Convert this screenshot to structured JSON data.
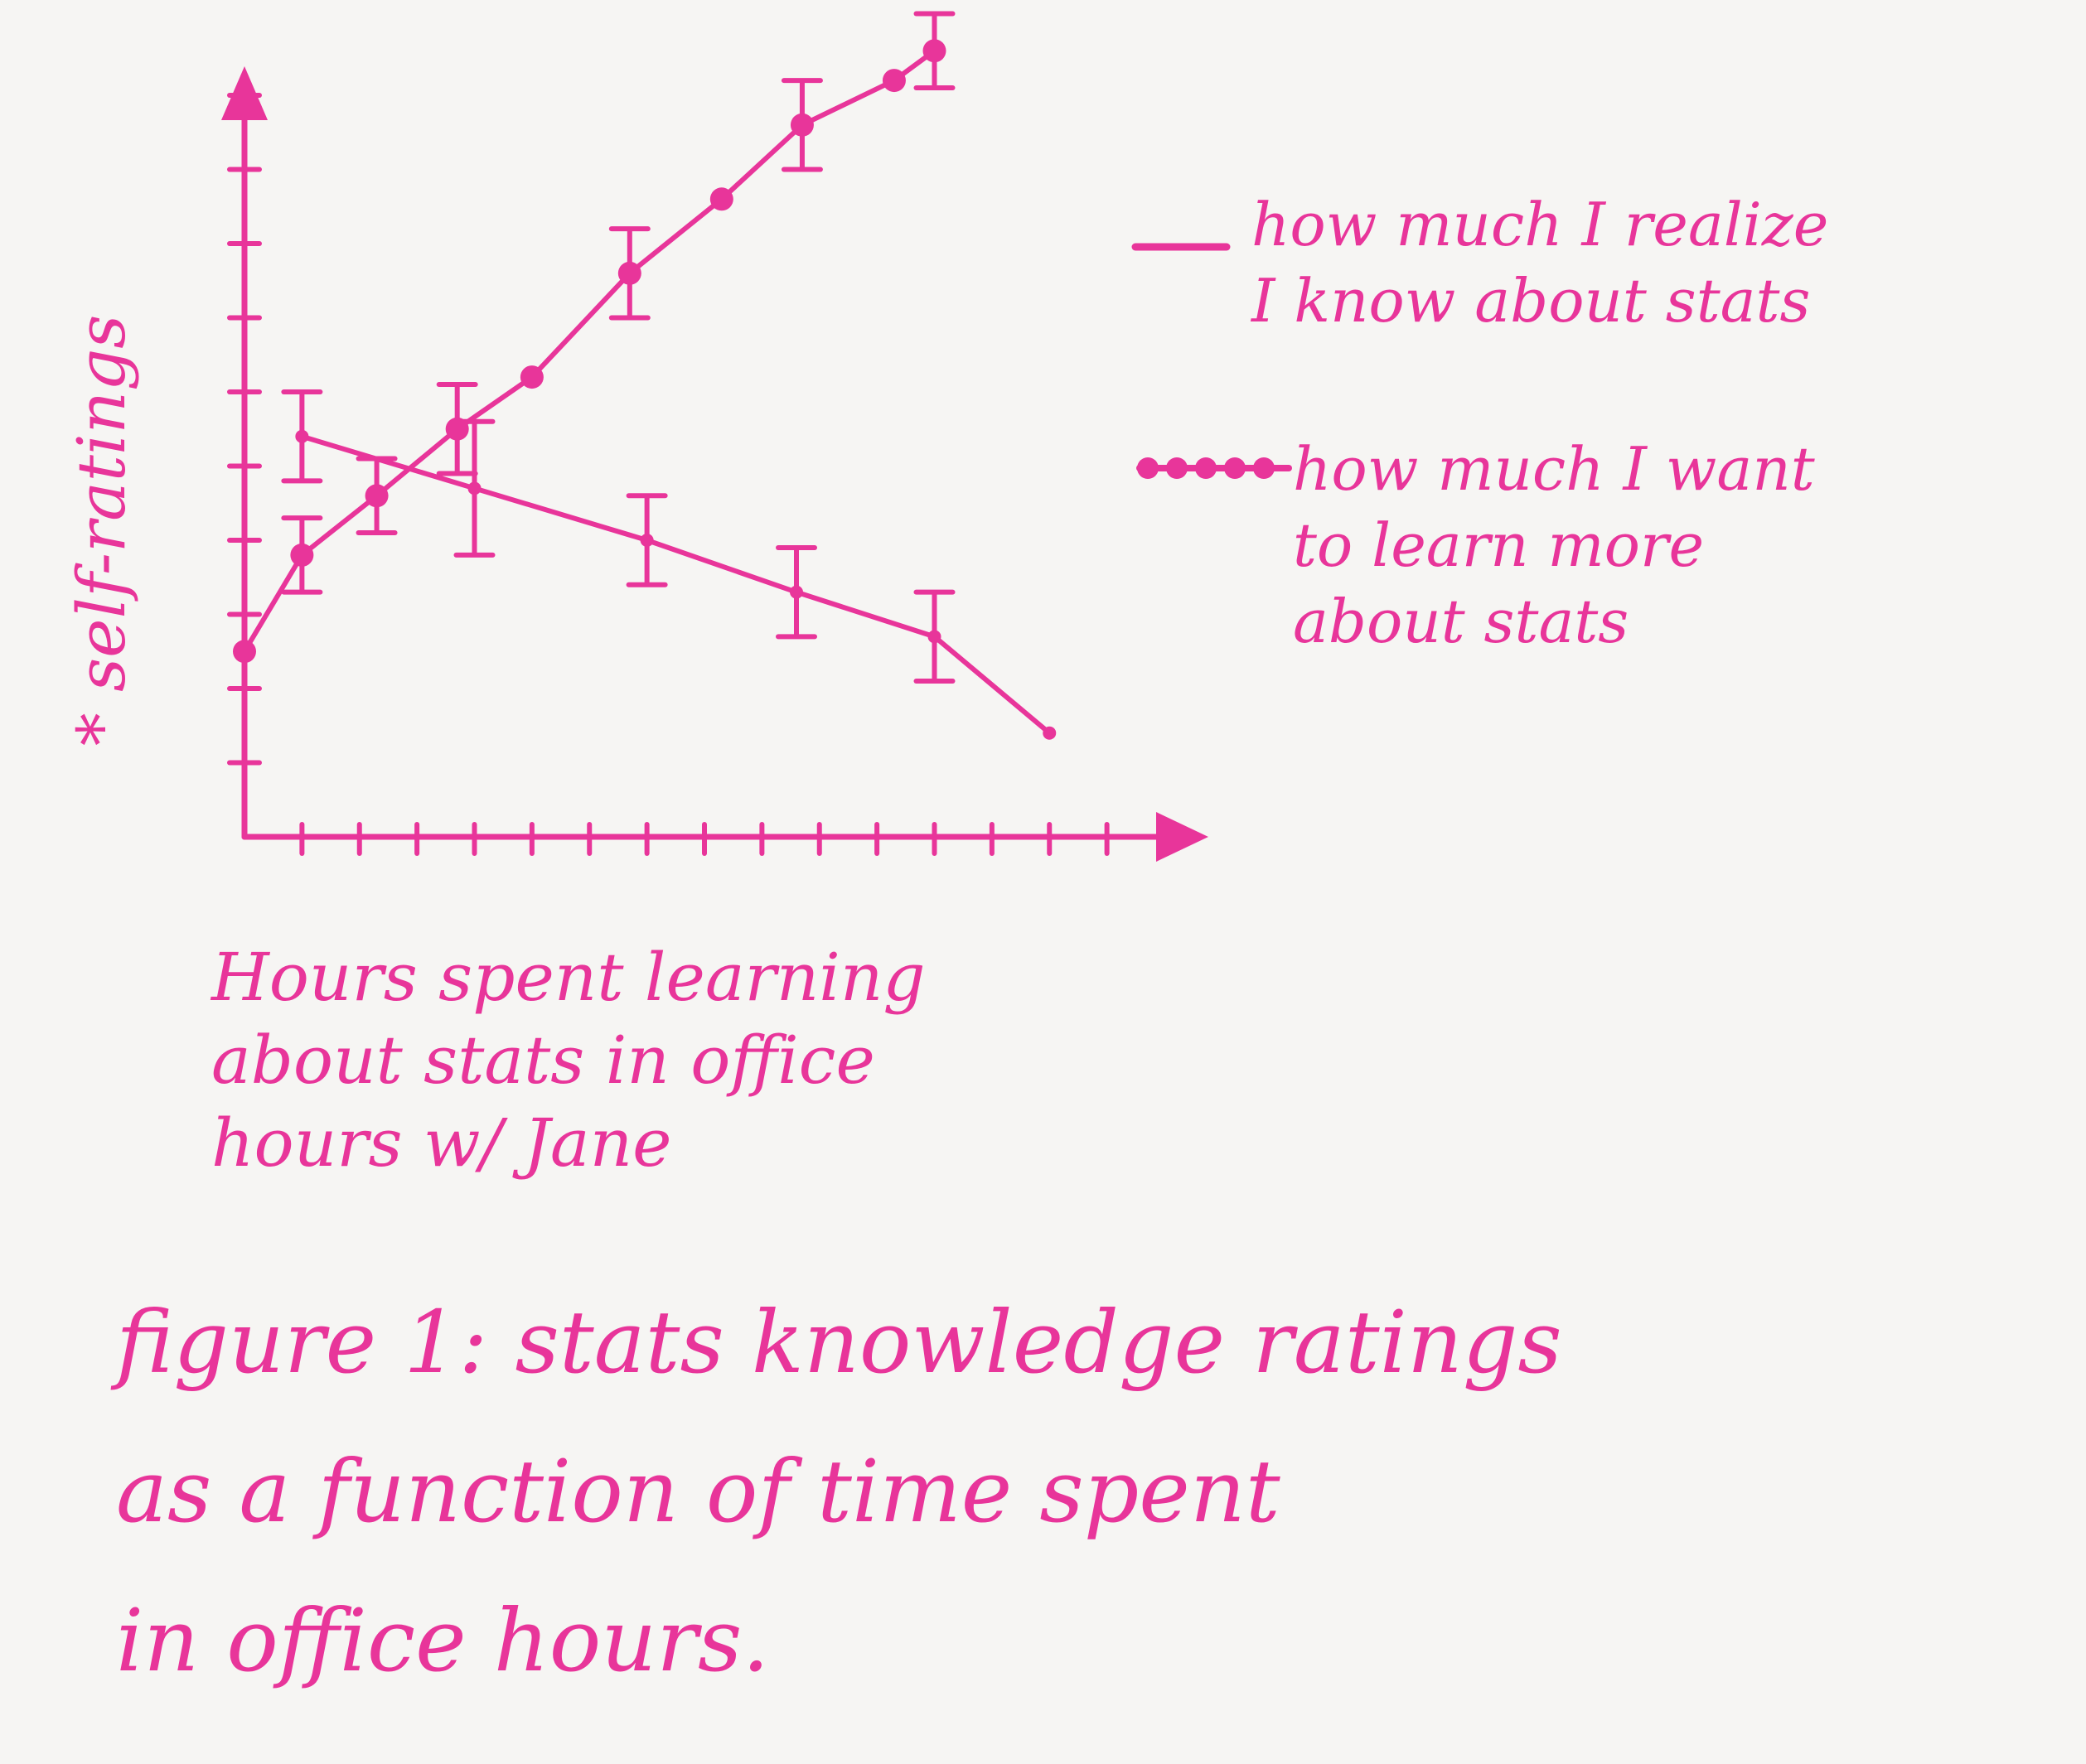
{
  "colors": {
    "ink": "#e8359a",
    "paper": "#f6f5f3"
  },
  "chart_data": {
    "type": "line",
    "title": "",
    "xlabel": "Hours spent learning\nabout stats in office\nhours w/ Jane",
    "ylabel": "* self-ratings",
    "xlim": [
      0,
      16
    ],
    "ylim": [
      0,
      10
    ],
    "grid": false,
    "legend_position": "right",
    "series": [
      {
        "name": "how much I realize\nI know about stats",
        "style": "solid",
        "x": [
          1,
          4,
          7,
          9.6,
          12,
          14
        ],
        "y": [
          5.4,
          4.7,
          4.0,
          3.3,
          2.7,
          1.4
        ],
        "error": [
          0.6,
          0.9,
          0.6,
          0.6,
          0.6,
          0
        ]
      },
      {
        "name": "how much I want\nto learn more\nabout stats",
        "style": "dotted",
        "x": [
          0,
          1,
          2.3,
          3.7,
          5,
          6.7,
          8.3,
          9.7,
          11.3,
          12
        ],
        "y": [
          2.5,
          3.8,
          4.6,
          5.5,
          6.2,
          7.6,
          8.6,
          9.6,
          10.2,
          10.6
        ],
        "error": [
          0,
          0.5,
          0.5,
          0.6,
          0,
          0.6,
          0,
          0.6,
          0,
          0.5
        ]
      }
    ]
  },
  "caption": "figure 1: stats knowledge ratings\nas a function of time spent\nin office hours."
}
